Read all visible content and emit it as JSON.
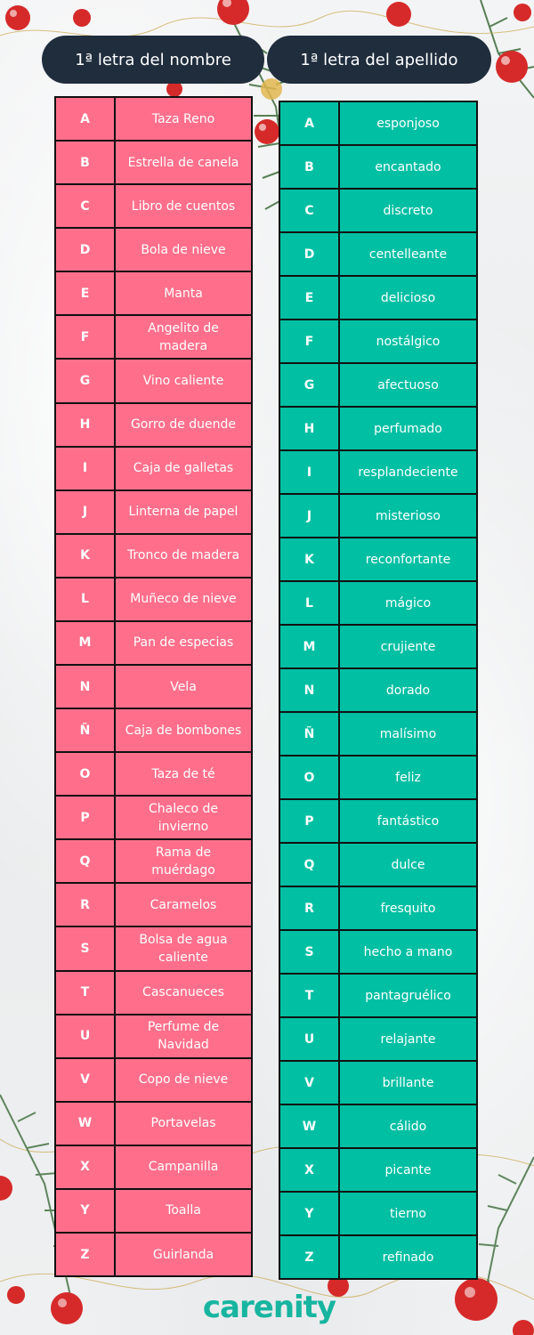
{
  "headers": {
    "first_name": "1ª letra del nombre",
    "last_name": "1ª letra del apellido"
  },
  "first_name_rows": [
    {
      "letter": "A",
      "word": "Taza Reno"
    },
    {
      "letter": "B",
      "word": "Estrella de canela"
    },
    {
      "letter": "C",
      "word": "Libro de cuentos"
    },
    {
      "letter": "D",
      "word": "Bola de nieve"
    },
    {
      "letter": "E",
      "word": "Manta"
    },
    {
      "letter": "F",
      "word": "Angelito de madera"
    },
    {
      "letter": "G",
      "word": "Vino caliente"
    },
    {
      "letter": "H",
      "word": "Gorro de duende"
    },
    {
      "letter": "I",
      "word": "Caja de galletas"
    },
    {
      "letter": "J",
      "word": "Linterna de papel"
    },
    {
      "letter": "K",
      "word": "Tronco de madera"
    },
    {
      "letter": "L",
      "word": "Muñeco de nieve"
    },
    {
      "letter": "M",
      "word": "Pan de especias"
    },
    {
      "letter": "N",
      "word": "Vela"
    },
    {
      "letter": "Ñ",
      "word": "Caja de bombones"
    },
    {
      "letter": "O",
      "word": "Taza de té"
    },
    {
      "letter": "P",
      "word": "Chaleco de invierno"
    },
    {
      "letter": "Q",
      "word": "Rama de muérdago"
    },
    {
      "letter": "R",
      "word": "Caramelos"
    },
    {
      "letter": "S",
      "word": "Bolsa de agua caliente"
    },
    {
      "letter": "T",
      "word": "Cascanueces"
    },
    {
      "letter": "U",
      "word": "Perfume de Navidad"
    },
    {
      "letter": "V",
      "word": "Copo de nieve"
    },
    {
      "letter": "W",
      "word": "Portavelas"
    },
    {
      "letter": "X",
      "word": "Campanilla"
    },
    {
      "letter": "Y",
      "word": "Toalla"
    },
    {
      "letter": "Z",
      "word": "Guirlanda"
    }
  ],
  "last_name_rows": [
    {
      "letter": "A",
      "word": "esponjoso"
    },
    {
      "letter": "B",
      "word": "encantado"
    },
    {
      "letter": "C",
      "word": "discreto"
    },
    {
      "letter": "D",
      "word": "centelleante"
    },
    {
      "letter": "E",
      "word": "delicioso"
    },
    {
      "letter": "F",
      "word": "nostálgico"
    },
    {
      "letter": "G",
      "word": "afectuoso"
    },
    {
      "letter": "H",
      "word": "perfumado"
    },
    {
      "letter": "I",
      "word": "resplandeciente"
    },
    {
      "letter": "J",
      "word": "misterioso"
    },
    {
      "letter": "K",
      "word": "reconfortante"
    },
    {
      "letter": "L",
      "word": "mágico"
    },
    {
      "letter": "M",
      "word": "crujiente"
    },
    {
      "letter": "N",
      "word": "dorado"
    },
    {
      "letter": "Ñ",
      "word": "malísimo"
    },
    {
      "letter": "O",
      "word": "feliz"
    },
    {
      "letter": "P",
      "word": "fantástico"
    },
    {
      "letter": "Q",
      "word": "dulce"
    },
    {
      "letter": "R",
      "word": "fresquito"
    },
    {
      "letter": "S",
      "word": "hecho a mano"
    },
    {
      "letter": "T",
      "word": "pantagruélico"
    },
    {
      "letter": "U",
      "word": "relajante"
    },
    {
      "letter": "V",
      "word": "brillante"
    },
    {
      "letter": "W",
      "word": "cálido"
    },
    {
      "letter": "X",
      "word": "picante"
    },
    {
      "letter": "Y",
      "word": "tierno"
    },
    {
      "letter": "Z",
      "word": "refinado"
    }
  ],
  "logo": "carenity",
  "colors": {
    "header_bg": "#1f2d3d",
    "first_table": "#ff6f8b",
    "last_table": "#00bfa3",
    "logo": "#17b5a0"
  }
}
